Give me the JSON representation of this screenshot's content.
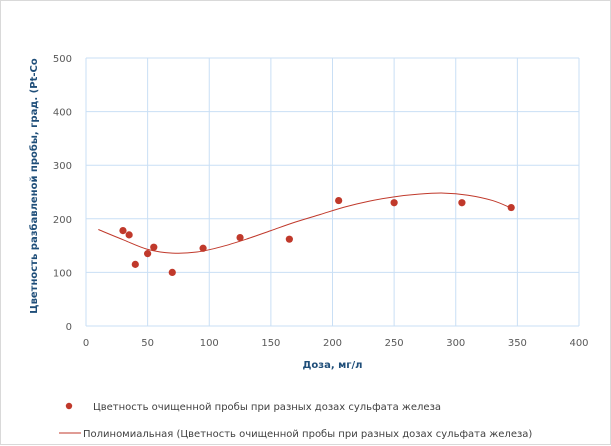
{
  "chart_data": {
    "type": "scatter",
    "title": "",
    "xlabel": "Доза, мг/л",
    "ylabel": "Цветность разбавленой пробы, град. (Pt-Co",
    "xlim": [
      0,
      400
    ],
    "ylim": [
      0,
      500
    ],
    "xticks": [
      0,
      50,
      100,
      150,
      200,
      250,
      300,
      350,
      400
    ],
    "yticks": [
      0,
      100,
      200,
      300,
      400,
      500
    ],
    "grid": true,
    "legend_position": "bottom",
    "colors": {
      "points": "#c0392b",
      "trendline": "#c0392b",
      "grid": "#c9dff5",
      "axis_title": "#1f4e79"
    },
    "series": [
      {
        "name": "Цветность очищенной пробы при разных дозах сульфата железа",
        "type": "scatter",
        "x": [
          30,
          35,
          40,
          50,
          55,
          70,
          95,
          125,
          165,
          205,
          250,
          305,
          345
        ],
        "y": [
          178,
          170,
          115,
          135,
          147,
          100,
          145,
          165,
          162,
          234,
          230,
          230,
          221
        ]
      },
      {
        "name": "Полиномиальная (Цветность очищенной пробы при разных дозах сульфата железа)",
        "type": "trendline",
        "x": [
          10,
          30,
          50,
          70,
          90,
          110,
          130,
          150,
          170,
          190,
          210,
          230,
          250,
          270,
          290,
          310,
          330,
          345
        ],
        "y": [
          180,
          161,
          143,
          136,
          138,
          148,
          162,
          178,
          194,
          208,
          222,
          233,
          241,
          246,
          248,
          244,
          234,
          220
        ]
      }
    ]
  }
}
